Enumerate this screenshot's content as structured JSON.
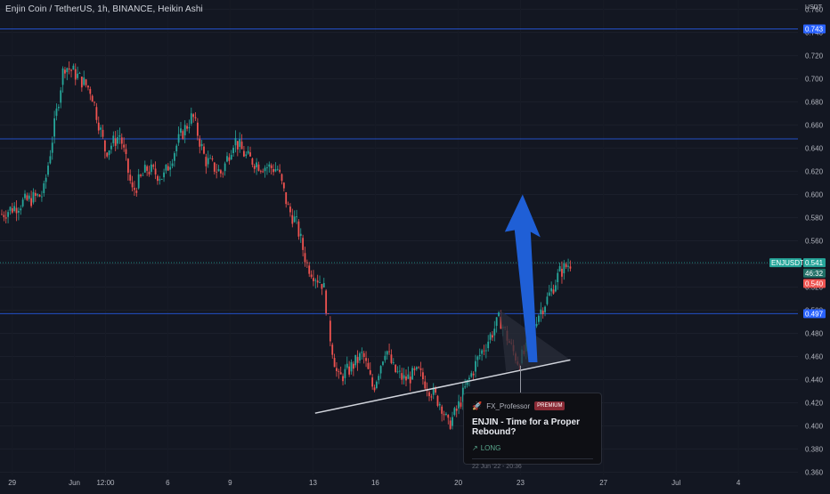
{
  "title": "Enjin Coin / TetherUS, 1h, BINANCE, Heikin Ashi",
  "colors": {
    "background": "#131722",
    "up": "#26a69a",
    "down": "#ef5350",
    "hline": "#2962ff",
    "trend": "#d1d4dc",
    "arrow": "#1f5fd6"
  },
  "chart_data": {
    "type": "candlestick",
    "title": "Enjin Coin / TetherUS, 1h, BINANCE, Heikin Ashi",
    "y_axis": {
      "unit": "USDT",
      "range": [
        0.345,
        0.768
      ],
      "ticks": [
        "0.760",
        "0.740",
        "0.720",
        "0.700",
        "0.680",
        "0.660",
        "0.640",
        "0.620",
        "0.600",
        "0.580",
        "0.560",
        "0.540",
        "0.520",
        "0.500",
        "0.480",
        "0.460",
        "0.440",
        "0.420",
        "0.400",
        "0.380",
        "0.360"
      ]
    },
    "x_axis": {
      "ticks": [
        {
          "label": "29",
          "day": 0.5
        },
        {
          "label": "Jun",
          "day": 3.5
        },
        {
          "label": "12:00",
          "day": 5.0
        },
        {
          "label": "6",
          "day": 8.0
        },
        {
          "label": "9",
          "day": 11.0
        },
        {
          "label": "13",
          "day": 15.0
        },
        {
          "label": "16",
          "day": 18.0
        },
        {
          "label": "20",
          "day": 22.0
        },
        {
          "label": "23",
          "day": 25.0
        },
        {
          "label": "27",
          "day": 29.0
        },
        {
          "label": "Jul",
          "day": 32.5
        },
        {
          "label": "4",
          "day": 35.5
        }
      ]
    },
    "price_path": [
      [
        0.0,
        0.583
      ],
      [
        1.0,
        0.593
      ],
      [
        2.0,
        0.6
      ],
      [
        2.5,
        0.655
      ],
      [
        3.0,
        0.712
      ],
      [
        3.5,
        0.705
      ],
      [
        4.3,
        0.69
      ],
      [
        5.0,
        0.637
      ],
      [
        5.7,
        0.652
      ],
      [
        6.3,
        0.602
      ],
      [
        7.0,
        0.622
      ],
      [
        7.8,
        0.615
      ],
      [
        8.6,
        0.65
      ],
      [
        9.2,
        0.668
      ],
      [
        9.8,
        0.63
      ],
      [
        10.6,
        0.618
      ],
      [
        11.2,
        0.648
      ],
      [
        11.8,
        0.632
      ],
      [
        12.5,
        0.625
      ],
      [
        13.3,
        0.622
      ],
      [
        13.8,
        0.588
      ],
      [
        14.2,
        0.575
      ],
      [
        14.7,
        0.54
      ],
      [
        15.1,
        0.53
      ],
      [
        15.5,
        0.522
      ],
      [
        15.8,
        0.48
      ],
      [
        16.2,
        0.44
      ],
      [
        16.7,
        0.448
      ],
      [
        17.4,
        0.462
      ],
      [
        17.9,
        0.432
      ],
      [
        18.5,
        0.468
      ],
      [
        18.9,
        0.448
      ],
      [
        19.4,
        0.44
      ],
      [
        20.1,
        0.446
      ],
      [
        20.7,
        0.43
      ],
      [
        21.2,
        0.418
      ],
      [
        21.5,
        0.4
      ],
      [
        21.9,
        0.412
      ],
      [
        22.4,
        0.435
      ],
      [
        23.0,
        0.46
      ],
      [
        23.5,
        0.476
      ],
      [
        24.0,
        0.493
      ],
      [
        24.5,
        0.47
      ],
      [
        24.9,
        0.455
      ],
      [
        25.3,
        0.466
      ],
      [
        25.8,
        0.495
      ],
      [
        26.3,
        0.51
      ],
      [
        26.9,
        0.533
      ],
      [
        27.4,
        0.541
      ]
    ],
    "horizontal_levels": [
      0.743,
      0.648,
      0.497
    ],
    "last_price_level": 0.541,
    "trendline": {
      "start": [
        15.1,
        0.411
      ],
      "end": [
        27.4,
        0.457
      ]
    },
    "triangle": [
      [
        24.0,
        0.5
      ],
      [
        27.4,
        0.457
      ],
      [
        24.3,
        0.447
      ]
    ],
    "target_arrow": {
      "start_day": 25.6,
      "end_day": 25.1,
      "base_price": 0.455,
      "tip_price": 0.6
    },
    "price_labels": [
      {
        "text": "0.743",
        "price": 0.743,
        "kind": "level"
      },
      {
        "text": "ENJUSDT",
        "price": 0.541,
        "kind": "symbol"
      },
      {
        "text": "0.541",
        "price": 0.541,
        "kind": "last"
      },
      {
        "text": "46:32",
        "price": 0.532,
        "kind": "countdown"
      },
      {
        "text": "0.540",
        "price": 0.523,
        "kind": "ha"
      },
      {
        "text": "0.497",
        "price": 0.497,
        "kind": "level"
      }
    ]
  },
  "idea_card": {
    "author": "FX_Professor",
    "badge": "PREMIUM",
    "title": "ENJIN - Time for a Proper Rebound?",
    "direction": "LONG",
    "date": "22 Jun '22 - 20:36"
  },
  "icons": {
    "author": "rocket-icon",
    "direction": "arrow-up-right-icon"
  }
}
